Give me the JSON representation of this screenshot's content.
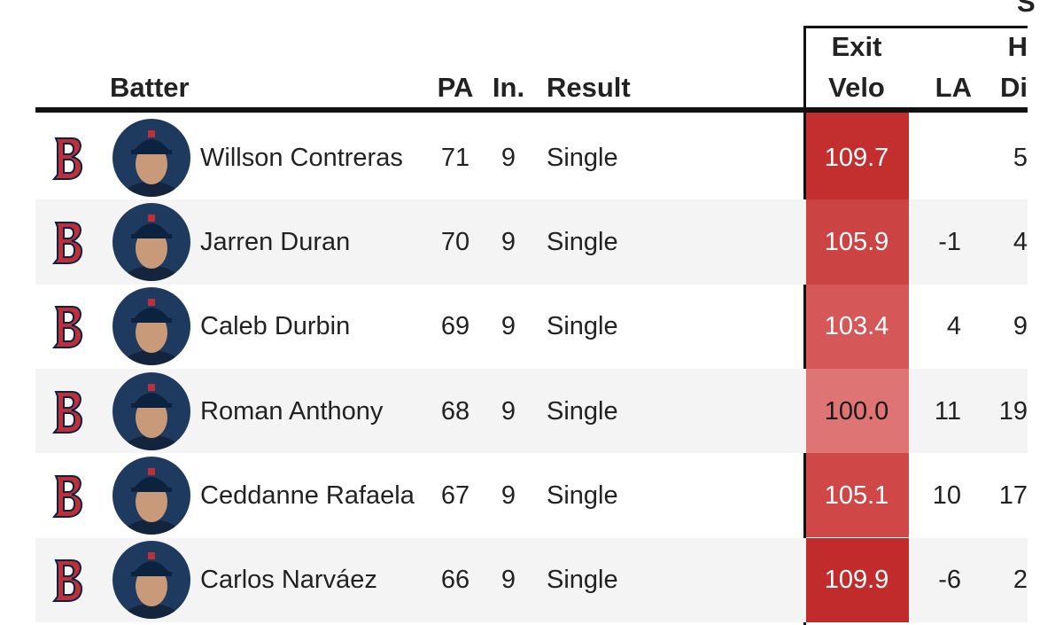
{
  "table": {
    "corner_label": "S",
    "header": [
      "Batter",
      "PA",
      "In.",
      "Result",
      [
        "Exit",
        "Velo"
      ],
      "LA",
      [
        "H",
        "Di"
      ]
    ],
    "rows": [
      [
        "Willson Contreras",
        71,
        9,
        "Single",
        109.7,
        null,
        5
      ],
      [
        "Jarren Duran",
        70,
        9,
        "Single",
        105.9,
        -1,
        4
      ],
      [
        "Caleb Durbin",
        69,
        9,
        "Single",
        103.4,
        4,
        9
      ],
      [
        "Roman Anthony",
        68,
        9,
        "Single",
        "100.0",
        11,
        19
      ],
      [
        "Ceddanne Rafaela",
        67,
        9,
        "Single",
        105.1,
        10,
        17
      ],
      [
        "Carlos Narváez",
        66,
        9,
        "Single",
        109.9,
        -6,
        2
      ]
    ],
    "exit_velo_colors": [
      "#c32e2e",
      "#cc4343",
      "#d55757",
      "#df7474",
      "#cf4747",
      "#c22b2b"
    ],
    "exit_velo_text_colors": [
      "#ffffff",
      "#ffffff",
      "#ffffff",
      "#1a1a1a",
      "#ffffff",
      "#ffffff"
    ]
  }
}
